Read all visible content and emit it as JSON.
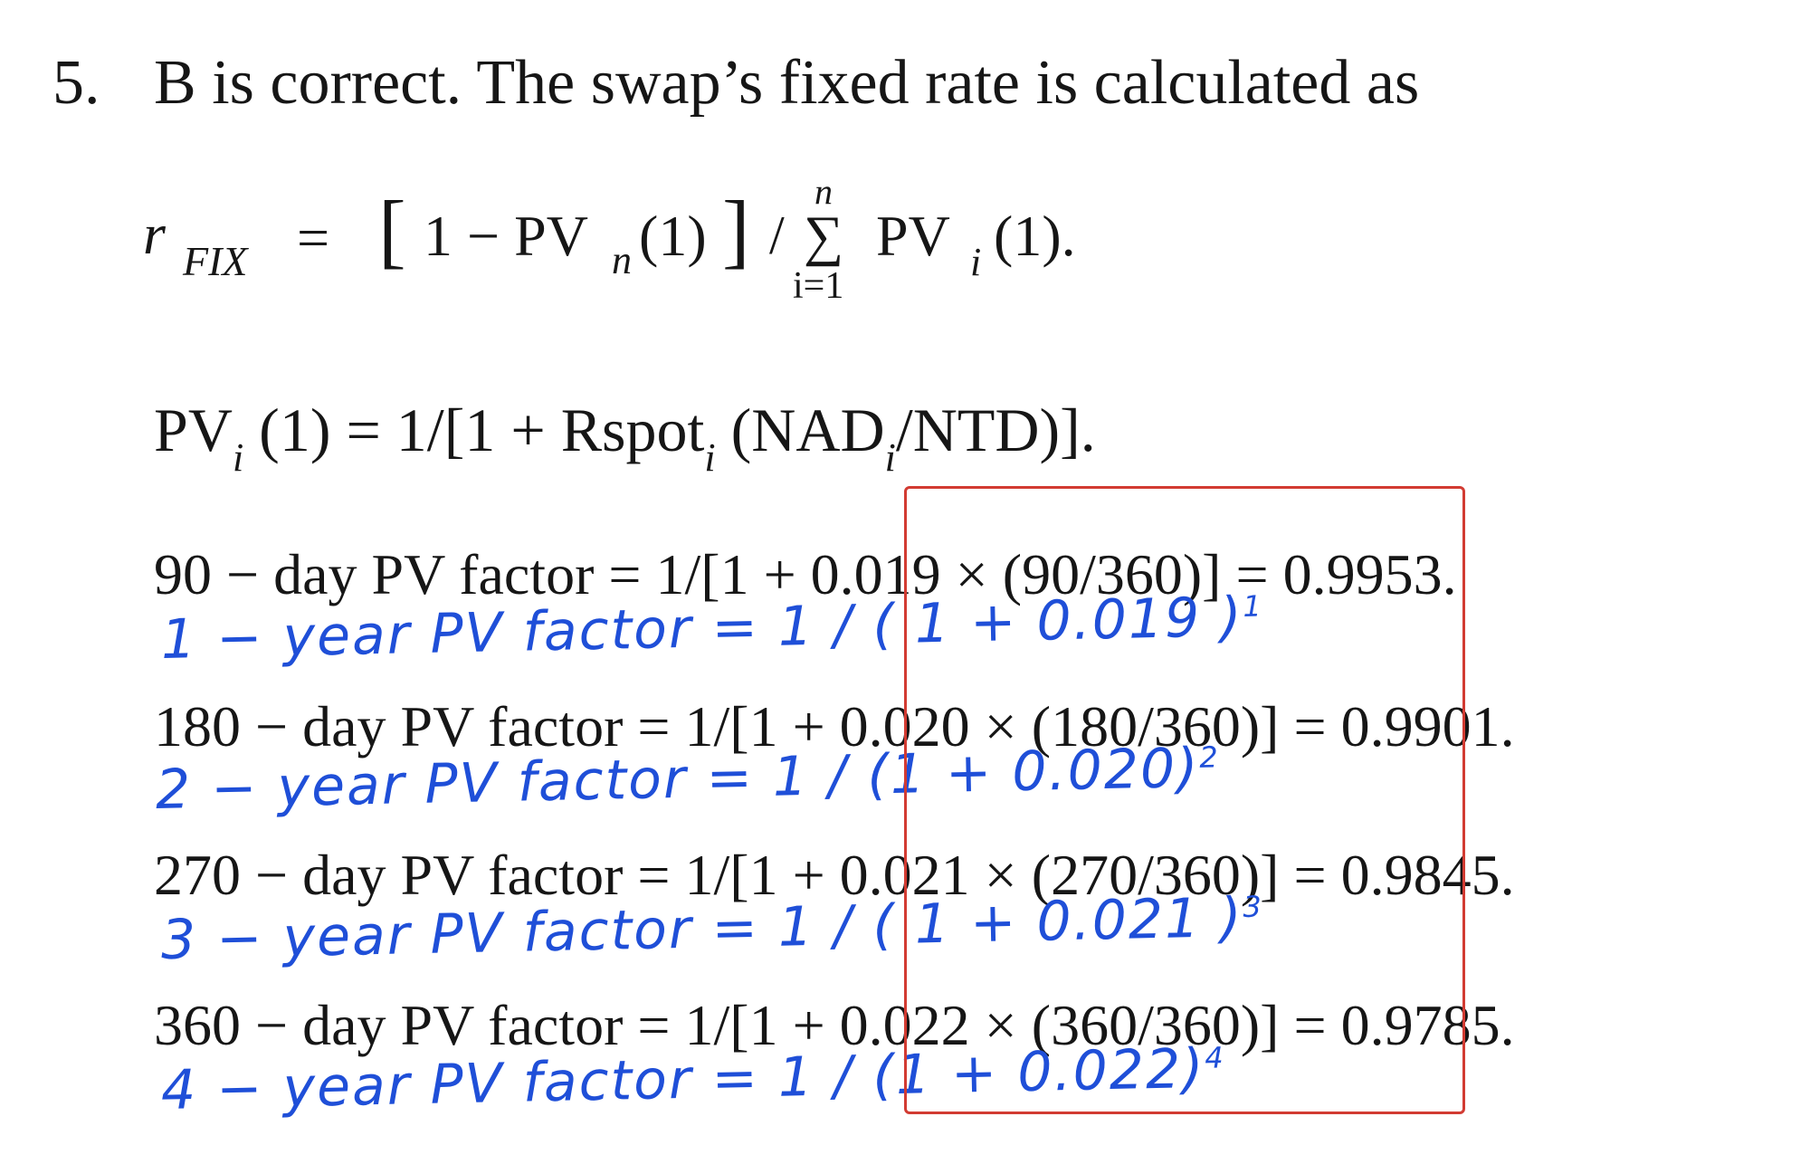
{
  "heading": {
    "number": "5.",
    "text": "B is correct. The swap’s fixed rate is calculated as"
  },
  "formula_fixed_rate": {
    "lhs": "r",
    "lhs_sub": "FIX",
    "eq": "=",
    "bracket_open": "[",
    "inner_a": "1 − PV",
    "inner_sub": "n",
    "inner_b": "(1)",
    "bracket_close": "]",
    "slash": "/",
    "sum_upper": "n",
    "sum_symbol": "∑",
    "sum_lower": "i=1",
    "pv": "PV",
    "pv_sub": "i",
    "pv_tail": "(1)."
  },
  "formula_pv": {
    "a": "PV",
    "sub1": "i",
    "b": " (1) = 1/[1 + Rspot",
    "sub2": "i",
    "c": " (NAD",
    "sub3": "i",
    "d": "/NTD)]."
  },
  "typed_lines": [
    "90 − day PV factor = 1/[1 + 0.019 × (90/360)] = 0.9953.",
    "180 − day PV factor = 1/[1 + 0.020 × (180/360)] = 0.9901.",
    "270 − day PV factor = 1/[1 + 0.021 × (270/360)] = 0.9845.",
    "360 − day PV factor = 1/[1 + 0.022 × (360/360)] = 0.9785."
  ],
  "handwritten": [
    {
      "text": "1 − year PV factor = 1 / ( 1 + 0.019 )",
      "exp": "1"
    },
    {
      "text": "2 − year PV factor = 1 / (1 + 0.020)",
      "exp": "2"
    },
    {
      "text": "3 − year PV factor = 1 / ( 1 + 0.021 )",
      "exp": "3"
    },
    {
      "text": "4 − year PV factor = 1 / (1 + 0.022)",
      "exp": "4"
    }
  ],
  "colors": {
    "handwriting": "#1f4fd8",
    "highlight_box": "#d23b32"
  }
}
